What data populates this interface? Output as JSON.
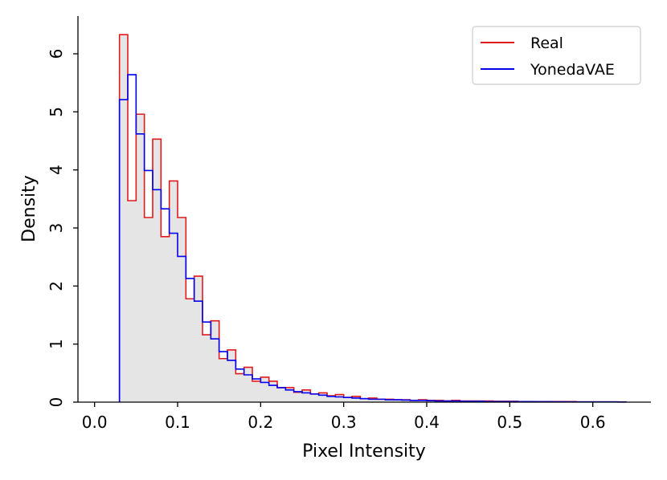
{
  "chart_data": {
    "type": "histogram",
    "xlabel": "Pixel Intensity",
    "ylabel": "Density",
    "xlim": [
      -0.02,
      0.67
    ],
    "ylim": [
      0,
      6.65
    ],
    "x_ticks": [
      0.0,
      0.1,
      0.2,
      0.3,
      0.4,
      0.5,
      0.6
    ],
    "x_tick_labels": [
      "0.0",
      "0.1",
      "0.2",
      "0.3",
      "0.4",
      "0.5",
      "0.6"
    ],
    "y_ticks": [
      0,
      1,
      2,
      3,
      4,
      5,
      6
    ],
    "y_tick_labels": [
      "0",
      "1",
      "2",
      "3",
      "4",
      "5",
      "6"
    ],
    "grid": false,
    "legend_position": "top-right",
    "bin_edges_start": 0.03,
    "bin_width": 0.01,
    "series": [
      {
        "name": "Real",
        "color": "#e31a1c",
        "style": "step-outline",
        "values": [
          6.33,
          3.47,
          4.96,
          3.18,
          4.53,
          2.85,
          3.81,
          3.18,
          1.78,
          2.17,
          1.16,
          1.4,
          0.75,
          0.9,
          0.49,
          0.6,
          0.36,
          0.43,
          0.36,
          0.25,
          0.25,
          0.17,
          0.21,
          0.14,
          0.16,
          0.11,
          0.13,
          0.08,
          0.1,
          0.06,
          0.07,
          0.05,
          0.05,
          0.04,
          0.04,
          0.03,
          0.04,
          0.03,
          0.03,
          0.02,
          0.03,
          0.02,
          0.02,
          0.02,
          0.02,
          0.015,
          0.015,
          0.015,
          0.01,
          0.01,
          0.01,
          0.01,
          0.01,
          0.01,
          0.01,
          0.005,
          0.005,
          0.005,
          0.005,
          0.005,
          0.005
        ]
      },
      {
        "name": "YonedaVAE",
        "color": "#0000ee",
        "style": "step-outline",
        "values": [
          5.21,
          5.64,
          4.62,
          3.99,
          3.66,
          3.33,
          2.91,
          2.51,
          2.13,
          1.74,
          1.38,
          1.09,
          0.87,
          0.72,
          0.57,
          0.47,
          0.4,
          0.34,
          0.29,
          0.25,
          0.21,
          0.18,
          0.16,
          0.14,
          0.12,
          0.1,
          0.09,
          0.08,
          0.07,
          0.06,
          0.05,
          0.05,
          0.04,
          0.04,
          0.035,
          0.03,
          0.03,
          0.025,
          0.02,
          0.02,
          0.02,
          0.015,
          0.015,
          0.015,
          0.01,
          0.01,
          0.01,
          0.01,
          0.01,
          0.01,
          0.008,
          0.008,
          0.006,
          0.006,
          0.005,
          0.005,
          0.005,
          0.004,
          0.004,
          0.004,
          0.003
        ]
      }
    ],
    "fill_color": "#e5e5e5"
  }
}
